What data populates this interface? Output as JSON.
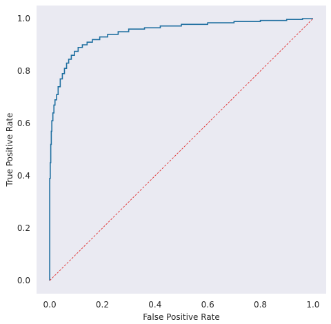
{
  "chart_data": {
    "type": "line",
    "title": "",
    "xlabel": "False Positive Rate",
    "ylabel": "True Positive Rate",
    "xlim": [
      -0.05,
      1.05
    ],
    "ylim": [
      -0.05,
      1.05
    ],
    "grid": false,
    "xticks": [
      0.0,
      0.2,
      0.4,
      0.6,
      0.8,
      1.0
    ],
    "xtick_labels": [
      "0.0",
      "0.2",
      "0.4",
      "0.6",
      "0.8",
      "1.0"
    ],
    "yticks": [
      0.0,
      0.2,
      0.4,
      0.6,
      0.8,
      1.0
    ],
    "ytick_labels": [
      "0.0",
      "0.2",
      "0.4",
      "0.6",
      "0.8",
      "1.0"
    ],
    "background_color": "#eaeaf2",
    "series": [
      {
        "style": "step",
        "color": "#1f6fa0",
        "x": [
          0.0,
          0.0,
          0.002,
          0.004,
          0.006,
          0.008,
          0.012,
          0.016,
          0.02,
          0.026,
          0.032,
          0.04,
          0.048,
          0.056,
          0.064,
          0.072,
          0.082,
          0.094,
          0.108,
          0.124,
          0.142,
          0.162,
          0.19,
          0.22,
          0.26,
          0.3,
          0.36,
          0.42,
          0.5,
          0.6,
          0.7,
          0.8,
          0.9,
          0.96,
          1.0
        ],
        "y": [
          0.0,
          0.39,
          0.45,
          0.52,
          0.57,
          0.61,
          0.64,
          0.67,
          0.69,
          0.71,
          0.74,
          0.77,
          0.79,
          0.81,
          0.83,
          0.845,
          0.86,
          0.875,
          0.89,
          0.9,
          0.91,
          0.92,
          0.93,
          0.94,
          0.95,
          0.96,
          0.965,
          0.972,
          0.978,
          0.984,
          0.989,
          0.993,
          0.997,
          1.0,
          1.0
        ]
      },
      {
        "style": "dashed",
        "color": "#e03030",
        "x": [
          0.0,
          1.0
        ],
        "y": [
          0.0,
          1.0
        ]
      }
    ]
  }
}
